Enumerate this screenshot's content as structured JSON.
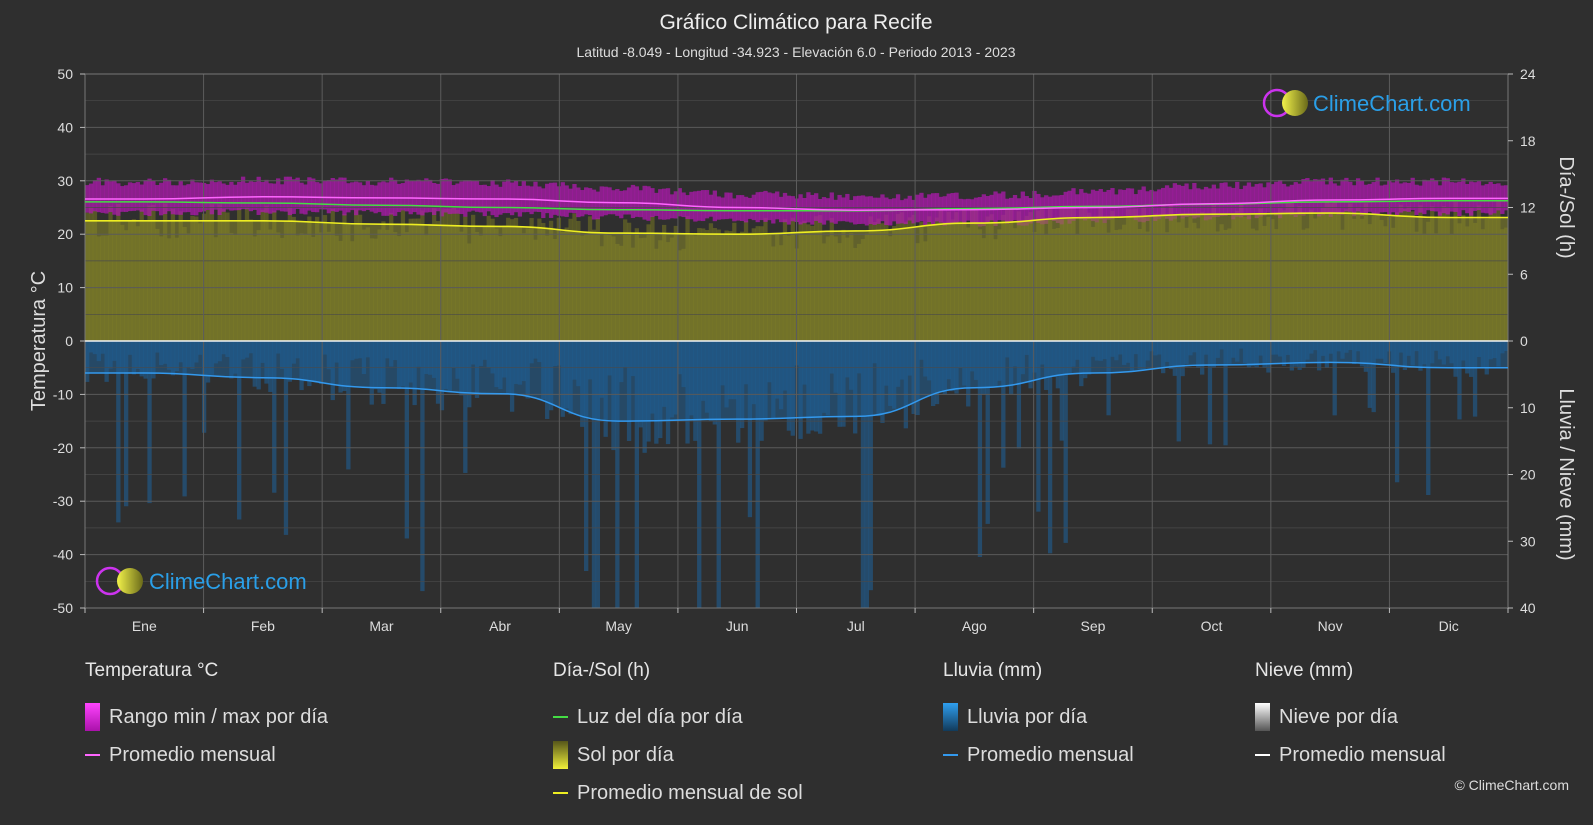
{
  "header": {
    "title": "Gráfico Climático para Recife",
    "subtitle": "Latitud -8.049 - Longitud -34.923 - Elevación 6.0 - Periodo 2013 - 2023"
  },
  "axes": {
    "left_label": "Temperatura °C",
    "right_top_label": "Día-/Sol (h)",
    "right_bottom_label": "Lluvia / Nieve (mm)",
    "left_ticks": [
      "50",
      "40",
      "30",
      "20",
      "10",
      "0",
      "-10",
      "-20",
      "-30",
      "-40",
      "-50"
    ],
    "right_top_ticks": [
      "24",
      "18",
      "12",
      "6",
      "0"
    ],
    "right_bottom_ticks": [
      "10",
      "20",
      "30",
      "40"
    ]
  },
  "watermark": {
    "text": "ClimeChart.com"
  },
  "chart_data": {
    "type": "area",
    "months": [
      "Ene",
      "Feb",
      "Mar",
      "Abr",
      "May",
      "Jun",
      "Jul",
      "Ago",
      "Sep",
      "Oct",
      "Nov",
      "Dic"
    ],
    "temperature_axis": {
      "label": "Temperatura °C",
      "range": [
        -50,
        50
      ]
    },
    "sun_axis": {
      "label": "Día-/Sol (h)",
      "range": [
        0,
        24
      ]
    },
    "precip_axis": {
      "label": "Lluvia / Nieve (mm)",
      "range": [
        0,
        40
      ],
      "inverted": true
    },
    "grid": true,
    "series": [
      {
        "name": "Promedio mensual",
        "group": "Temperatura °C",
        "unit": "°C",
        "color": "#ff66ff",
        "values": [
          26.6,
          27.0,
          26.8,
          26.6,
          25.9,
          25.0,
          24.5,
          24.6,
          25.0,
          25.7,
          26.4,
          26.7
        ]
      },
      {
        "name": "Rango min / max por día",
        "group": "Temperatura °C",
        "unit": "°C",
        "color": "#cc22cc",
        "min": [
          24.0,
          24.2,
          24.0,
          23.8,
          23.2,
          22.6,
          22.0,
          22.0,
          22.5,
          23.2,
          23.8,
          24.0
        ],
        "max": [
          29.8,
          30.0,
          29.8,
          29.6,
          28.6,
          27.5,
          27.0,
          27.2,
          28.0,
          29.0,
          29.8,
          29.9
        ]
      },
      {
        "name": "Luz del día por día",
        "group": "Día-/Sol (h)",
        "unit": "h",
        "color": "#44dd44",
        "values": [
          12.5,
          12.4,
          12.2,
          12.0,
          11.8,
          11.7,
          11.7,
          11.9,
          12.1,
          12.3,
          12.5,
          12.6
        ]
      },
      {
        "name": "Promedio mensual de sol",
        "group": "Día-/Sol (h)",
        "unit": "h",
        "color": "#eeee22",
        "values": [
          10.8,
          10.8,
          10.5,
          10.3,
          9.7,
          9.6,
          9.9,
          10.6,
          11.1,
          11.4,
          11.5,
          11.1
        ]
      },
      {
        "name": "Promedio mensual",
        "group": "Lluvia (mm)",
        "unit": "mm",
        "color": "#3399ee",
        "values": [
          4.8,
          5.5,
          7.0,
          7.9,
          12.0,
          11.7,
          11.3,
          7.0,
          4.8,
          3.6,
          3.2,
          4.0
        ]
      },
      {
        "name": "Promedio mensual",
        "group": "Nieve (mm)",
        "unit": "mm",
        "color": "#ffffff",
        "values": [
          0,
          0,
          0,
          0,
          0,
          0,
          0,
          0,
          0,
          0,
          0,
          0
        ]
      }
    ]
  },
  "legend": {
    "groups": [
      {
        "title": "Temperatura °C",
        "items": [
          {
            "label": "Rango min / max por día",
            "swatch": "box",
            "color": "#dd22dd"
          },
          {
            "label": "Promedio mensual",
            "swatch": "line",
            "color": "#ff66ff"
          }
        ]
      },
      {
        "title": "Día-/Sol (h)",
        "items": [
          {
            "label": "Luz del día por día",
            "swatch": "line",
            "color": "#44dd44"
          },
          {
            "label": "Sol por día",
            "swatch": "box",
            "color": "#cccc33"
          },
          {
            "label": "Promedio mensual de sol",
            "swatch": "line",
            "color": "#eeee22"
          }
        ]
      },
      {
        "title": "Lluvia (mm)",
        "items": [
          {
            "label": "Lluvia por día",
            "swatch": "box",
            "color": "#2a8fe0"
          },
          {
            "label": "Promedio mensual",
            "swatch": "line",
            "color": "#3399ee"
          }
        ]
      },
      {
        "title": "Nieve (mm)",
        "items": [
          {
            "label": "Nieve por día",
            "swatch": "box",
            "color": "#cccccc"
          },
          {
            "label": "Promedio mensual",
            "swatch": "line",
            "color": "#ffffff"
          }
        ]
      }
    ]
  },
  "copyright": "© ClimeChart.com"
}
